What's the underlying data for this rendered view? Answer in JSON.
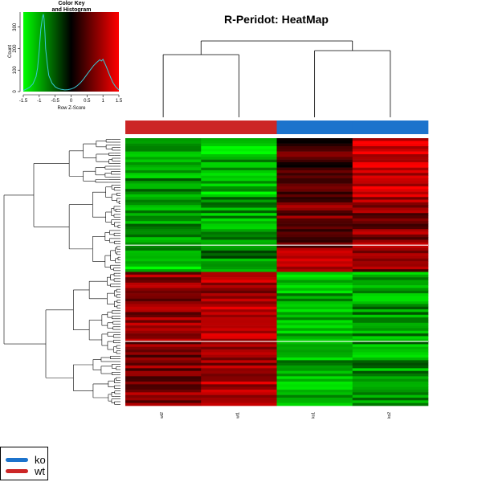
{
  "colors": {
    "background": "#ffffff",
    "ko": "#1c73cc",
    "wt": "#cc2626",
    "low": "#00ff00",
    "mid": "#000000",
    "high": "#ff0000",
    "histogram_line": "#38c9d6"
  },
  "chart_data": [
    {
      "type": "heatmap",
      "title": "R-Peridot: HeatMap",
      "columns": [
        "wt2",
        "wt1",
        "ko1",
        "ko2"
      ],
      "column_groups": [
        "wt",
        "wt",
        "ko",
        "ko"
      ],
      "row_count": 100,
      "color_scale": [
        "#00ff00",
        "#000000",
        "#ff0000"
      ],
      "value_range": [
        -1.5,
        1.5
      ],
      "row_clusters": [
        {
          "rows": 22,
          "wt2": -0.9,
          "wt1": -1.1,
          "ko1": 0.4,
          "ko2": 1.2
        },
        {
          "rows": 20,
          "wt2": -0.8,
          "wt1": -0.9,
          "ko1": 0.7,
          "ko2": 0.8
        },
        {
          "rows": 8,
          "wt2": -1.1,
          "wt1": -0.8,
          "ko1": 0.9,
          "ko2": 0.7
        },
        {
          "rows": 50,
          "wt2": 0.8,
          "wt1": 1.0,
          "ko1": -1.0,
          "ko2": -0.9
        }
      ],
      "row_separators_after": [
        40,
        76
      ],
      "dendrogram": {
        "column": true,
        "row": true
      },
      "legend_placement": "bottom-left"
    },
    {
      "type": "line",
      "title": "Color Key and Histogram",
      "title_lines": [
        "Color Key",
        "and Histogram"
      ],
      "xlabel": "Row Z-Score",
      "ylabel": "Count",
      "xlim": [
        -1.5,
        1.5
      ],
      "ylim": [
        0,
        370
      ],
      "x_ticks": [
        "-1.5",
        "-1",
        "-0.5",
        "0",
        "0.5",
        "1",
        "1.5"
      ],
      "y_ticks": [
        "0",
        "100",
        "200",
        "300"
      ],
      "x": [
        -1.5,
        -1.4,
        -1.3,
        -1.2,
        -1.1,
        -1.05,
        -1.0,
        -0.95,
        -0.9,
        -0.87,
        -0.85,
        -0.82,
        -0.8,
        -0.75,
        -0.7,
        -0.6,
        -0.5,
        -0.4,
        -0.3,
        -0.2,
        -0.1,
        0.0,
        0.1,
        0.2,
        0.3,
        0.4,
        0.5,
        0.6,
        0.7,
        0.8,
        0.9,
        0.95,
        1.0,
        1.1,
        1.2,
        1.3,
        1.4,
        1.5
      ],
      "y": [
        5,
        12,
        20,
        35,
        70,
        110,
        190,
        290,
        345,
        360,
        340,
        270,
        200,
        130,
        75,
        40,
        22,
        14,
        10,
        8,
        9,
        12,
        18,
        28,
        42,
        60,
        80,
        100,
        120,
        135,
        148,
        142,
        150,
        118,
        80,
        45,
        22,
        8
      ]
    }
  ],
  "legend": [
    {
      "label": "ko",
      "color": "#1c73cc"
    },
    {
      "label": "wt",
      "color": "#cc2626"
    }
  ]
}
